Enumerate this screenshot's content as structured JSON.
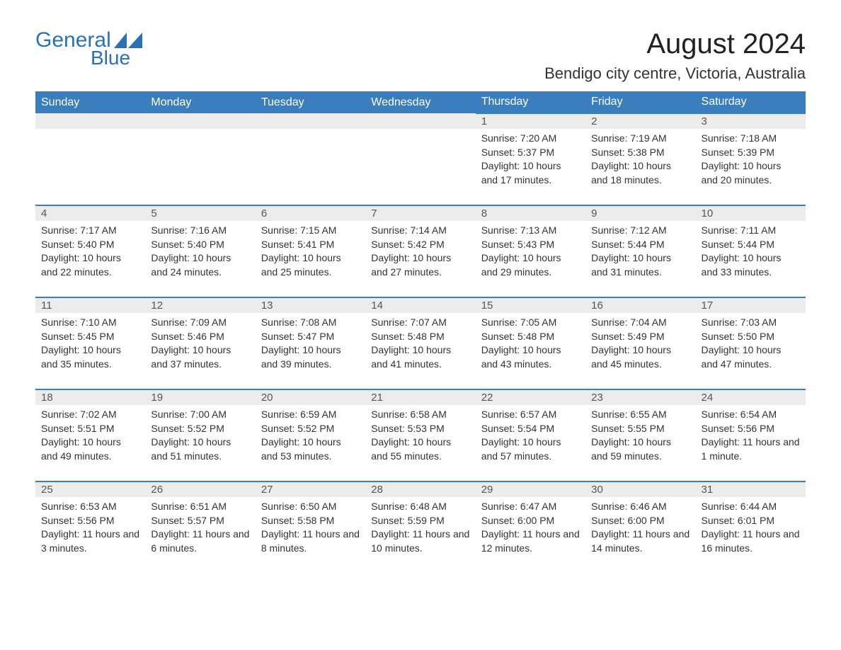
{
  "logo": {
    "part1": "General",
    "part2": "Blue",
    "brand_color": "#2a72b5"
  },
  "title": "August 2024",
  "location": "Bendigo city centre, Victoria, Australia",
  "header_bg": "#3a7ebd",
  "header_fg": "#ffffff",
  "daynum_bg": "#ececec",
  "row_border": "#3a7ebd",
  "columns": [
    "Sunday",
    "Monday",
    "Tuesday",
    "Wednesday",
    "Thursday",
    "Friday",
    "Saturday"
  ],
  "weeks": [
    [
      null,
      null,
      null,
      null,
      {
        "n": "1",
        "sr": "Sunrise: 7:20 AM",
        "ss": "Sunset: 5:37 PM",
        "dl": "Daylight: 10 hours and 17 minutes."
      },
      {
        "n": "2",
        "sr": "Sunrise: 7:19 AM",
        "ss": "Sunset: 5:38 PM",
        "dl": "Daylight: 10 hours and 18 minutes."
      },
      {
        "n": "3",
        "sr": "Sunrise: 7:18 AM",
        "ss": "Sunset: 5:39 PM",
        "dl": "Daylight: 10 hours and 20 minutes."
      }
    ],
    [
      {
        "n": "4",
        "sr": "Sunrise: 7:17 AM",
        "ss": "Sunset: 5:40 PM",
        "dl": "Daylight: 10 hours and 22 minutes."
      },
      {
        "n": "5",
        "sr": "Sunrise: 7:16 AM",
        "ss": "Sunset: 5:40 PM",
        "dl": "Daylight: 10 hours and 24 minutes."
      },
      {
        "n": "6",
        "sr": "Sunrise: 7:15 AM",
        "ss": "Sunset: 5:41 PM",
        "dl": "Daylight: 10 hours and 25 minutes."
      },
      {
        "n": "7",
        "sr": "Sunrise: 7:14 AM",
        "ss": "Sunset: 5:42 PM",
        "dl": "Daylight: 10 hours and 27 minutes."
      },
      {
        "n": "8",
        "sr": "Sunrise: 7:13 AM",
        "ss": "Sunset: 5:43 PM",
        "dl": "Daylight: 10 hours and 29 minutes."
      },
      {
        "n": "9",
        "sr": "Sunrise: 7:12 AM",
        "ss": "Sunset: 5:44 PM",
        "dl": "Daylight: 10 hours and 31 minutes."
      },
      {
        "n": "10",
        "sr": "Sunrise: 7:11 AM",
        "ss": "Sunset: 5:44 PM",
        "dl": "Daylight: 10 hours and 33 minutes."
      }
    ],
    [
      {
        "n": "11",
        "sr": "Sunrise: 7:10 AM",
        "ss": "Sunset: 5:45 PM",
        "dl": "Daylight: 10 hours and 35 minutes."
      },
      {
        "n": "12",
        "sr": "Sunrise: 7:09 AM",
        "ss": "Sunset: 5:46 PM",
        "dl": "Daylight: 10 hours and 37 minutes."
      },
      {
        "n": "13",
        "sr": "Sunrise: 7:08 AM",
        "ss": "Sunset: 5:47 PM",
        "dl": "Daylight: 10 hours and 39 minutes."
      },
      {
        "n": "14",
        "sr": "Sunrise: 7:07 AM",
        "ss": "Sunset: 5:48 PM",
        "dl": "Daylight: 10 hours and 41 minutes."
      },
      {
        "n": "15",
        "sr": "Sunrise: 7:05 AM",
        "ss": "Sunset: 5:48 PM",
        "dl": "Daylight: 10 hours and 43 minutes."
      },
      {
        "n": "16",
        "sr": "Sunrise: 7:04 AM",
        "ss": "Sunset: 5:49 PM",
        "dl": "Daylight: 10 hours and 45 minutes."
      },
      {
        "n": "17",
        "sr": "Sunrise: 7:03 AM",
        "ss": "Sunset: 5:50 PM",
        "dl": "Daylight: 10 hours and 47 minutes."
      }
    ],
    [
      {
        "n": "18",
        "sr": "Sunrise: 7:02 AM",
        "ss": "Sunset: 5:51 PM",
        "dl": "Daylight: 10 hours and 49 minutes."
      },
      {
        "n": "19",
        "sr": "Sunrise: 7:00 AM",
        "ss": "Sunset: 5:52 PM",
        "dl": "Daylight: 10 hours and 51 minutes."
      },
      {
        "n": "20",
        "sr": "Sunrise: 6:59 AM",
        "ss": "Sunset: 5:52 PM",
        "dl": "Daylight: 10 hours and 53 minutes."
      },
      {
        "n": "21",
        "sr": "Sunrise: 6:58 AM",
        "ss": "Sunset: 5:53 PM",
        "dl": "Daylight: 10 hours and 55 minutes."
      },
      {
        "n": "22",
        "sr": "Sunrise: 6:57 AM",
        "ss": "Sunset: 5:54 PM",
        "dl": "Daylight: 10 hours and 57 minutes."
      },
      {
        "n": "23",
        "sr": "Sunrise: 6:55 AM",
        "ss": "Sunset: 5:55 PM",
        "dl": "Daylight: 10 hours and 59 minutes."
      },
      {
        "n": "24",
        "sr": "Sunrise: 6:54 AM",
        "ss": "Sunset: 5:56 PM",
        "dl": "Daylight: 11 hours and 1 minute."
      }
    ],
    [
      {
        "n": "25",
        "sr": "Sunrise: 6:53 AM",
        "ss": "Sunset: 5:56 PM",
        "dl": "Daylight: 11 hours and 3 minutes."
      },
      {
        "n": "26",
        "sr": "Sunrise: 6:51 AM",
        "ss": "Sunset: 5:57 PM",
        "dl": "Daylight: 11 hours and 6 minutes."
      },
      {
        "n": "27",
        "sr": "Sunrise: 6:50 AM",
        "ss": "Sunset: 5:58 PM",
        "dl": "Daylight: 11 hours and 8 minutes."
      },
      {
        "n": "28",
        "sr": "Sunrise: 6:48 AM",
        "ss": "Sunset: 5:59 PM",
        "dl": "Daylight: 11 hours and 10 minutes."
      },
      {
        "n": "29",
        "sr": "Sunrise: 6:47 AM",
        "ss": "Sunset: 6:00 PM",
        "dl": "Daylight: 11 hours and 12 minutes."
      },
      {
        "n": "30",
        "sr": "Sunrise: 6:46 AM",
        "ss": "Sunset: 6:00 PM",
        "dl": "Daylight: 11 hours and 14 minutes."
      },
      {
        "n": "31",
        "sr": "Sunrise: 6:44 AM",
        "ss": "Sunset: 6:01 PM",
        "dl": "Daylight: 11 hours and 16 minutes."
      }
    ]
  ]
}
